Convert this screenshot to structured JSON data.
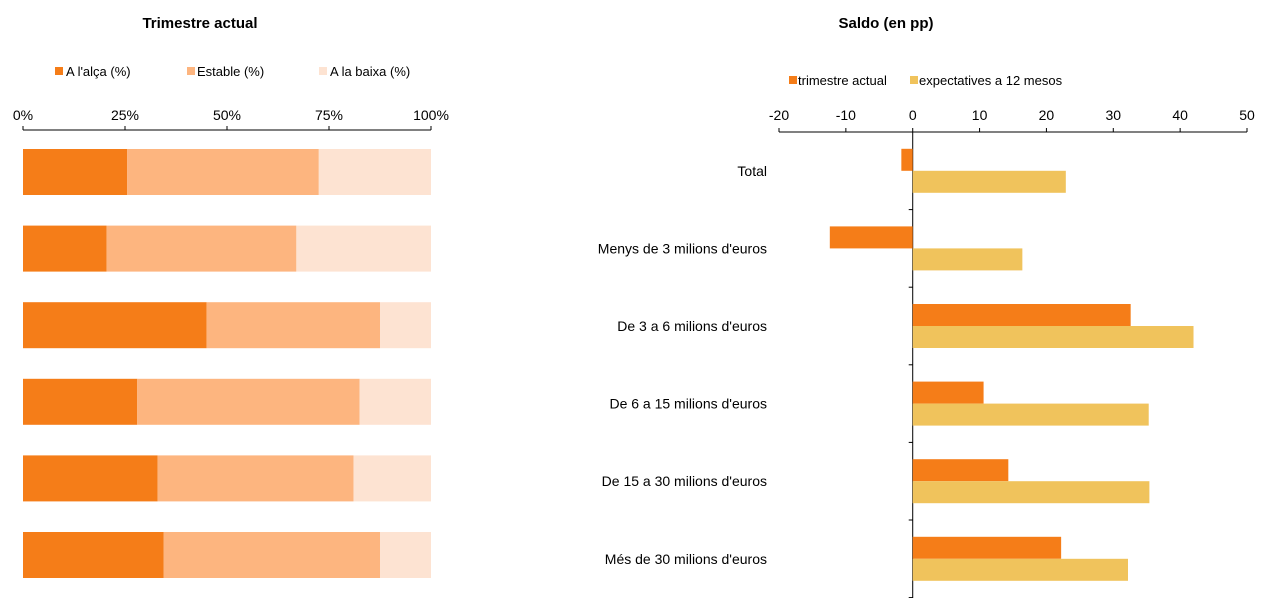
{
  "chart_data": [
    {
      "type": "bar",
      "orientation": "horizontal",
      "stacked": true,
      "percent_stacked": true,
      "title": "Trimestre actual",
      "xlim": [
        0,
        100
      ],
      "ticks": [
        "0%",
        "25%",
        "50%",
        "75%",
        "100%"
      ],
      "tick_values": [
        0,
        25,
        50,
        75,
        100
      ],
      "legend_position": "top",
      "grid": false,
      "series": [
        {
          "name": "A l'alça (%)",
          "color": "#F57D18",
          "values": [
            25.5,
            20.5,
            45,
            28,
            33,
            34.5
          ]
        },
        {
          "name": "Estable (%)",
          "color": "#FDB57F",
          "values": [
            47,
            46.5,
            42.5,
            54.5,
            48,
            53
          ]
        },
        {
          "name": "A la baixa (%)",
          "color": "#FDE3D2",
          "values": [
            27.5,
            33,
            12.5,
            17.5,
            19,
            12.5
          ]
        }
      ]
    },
    {
      "type": "bar",
      "orientation": "horizontal",
      "title": "Saldo (en pp)",
      "categories": [
        "Total",
        "Menys de 3 milions d'euros",
        "De 3 a 6 milions d'euros",
        "De 6 a 15 milions d'euros",
        "De 15 a 30 milions d'euros",
        "Més de 30 milions d'euros"
      ],
      "xlim": [
        -20,
        50
      ],
      "ticks": [
        "-20",
        "-10",
        "0",
        "10",
        "20",
        "30",
        "40",
        "50"
      ],
      "tick_values": [
        -20,
        -10,
        0,
        10,
        20,
        30,
        40,
        50
      ],
      "legend_position": "top",
      "grid": false,
      "series": [
        {
          "name": "trimestre actual",
          "color": "#F57D18",
          "values": [
            -1.7,
            -12.4,
            32.6,
            10.6,
            14.3,
            22.2
          ]
        },
        {
          "name": "expectatives a 12 mesos",
          "color": "#F0C35C",
          "values": [
            22.9,
            16.4,
            42,
            35.3,
            35.4,
            32.2
          ]
        }
      ]
    }
  ]
}
